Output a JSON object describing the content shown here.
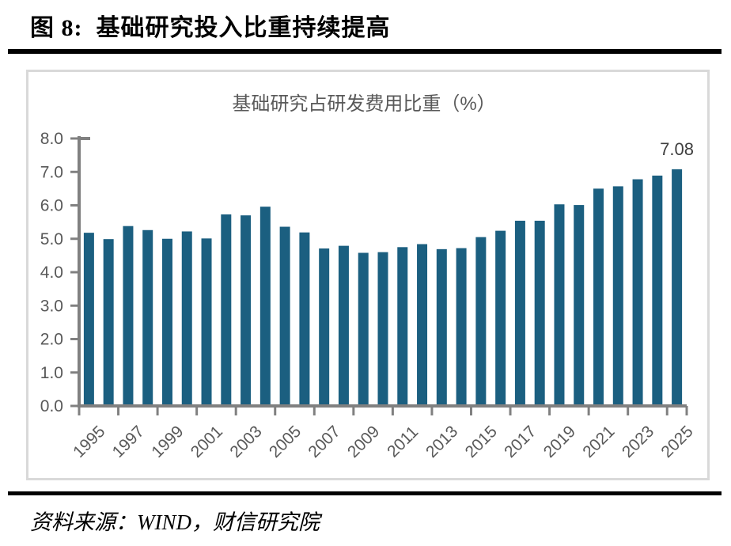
{
  "header": {
    "title": "图 8:  基础研究投入比重持续提高"
  },
  "footer": {
    "source": "资料来源：WIND，财信研究院"
  },
  "chart_data": {
    "type": "bar",
    "title": "基础研究占研发费用比重（%）",
    "categories": [
      1995,
      1996,
      1997,
      1998,
      1999,
      2000,
      2001,
      2002,
      2003,
      2004,
      2005,
      2006,
      2007,
      2008,
      2009,
      2010,
      2011,
      2012,
      2013,
      2014,
      2015,
      2016,
      2017,
      2018,
      2019,
      2020,
      2021,
      2022,
      2023,
      2024,
      2025
    ],
    "values": [
      5.18,
      4.99,
      5.38,
      5.26,
      5.0,
      5.22,
      5.01,
      5.73,
      5.7,
      5.96,
      5.36,
      5.19,
      4.71,
      4.79,
      4.58,
      4.6,
      4.75,
      4.84,
      4.69,
      4.72,
      5.05,
      5.24,
      5.54,
      5.54,
      6.03,
      6.01,
      6.5,
      6.57,
      6.78,
      6.89,
      7.08
    ],
    "xtick_labels_shown": [
      "1995",
      "1997",
      "1999",
      "2001",
      "2003",
      "2005",
      "2007",
      "2009",
      "2011",
      "2013",
      "2015",
      "2017",
      "2019",
      "2021",
      "2023",
      "2025"
    ],
    "ytick_labels": [
      "0.0",
      "1.0",
      "2.0",
      "3.0",
      "4.0",
      "5.0",
      "6.0",
      "7.0",
      "8.0"
    ],
    "ylim": [
      0,
      8
    ],
    "ytick_step": 1.0,
    "grid": false,
    "legend": null,
    "annotation": {
      "text": "7.08",
      "category": 2025
    },
    "colors": {
      "bar": "#1b5f80",
      "axis": "#808080",
      "tick_label": "#595959",
      "chart_title": "#595959",
      "annotation": "#3f3f3f",
      "frame_border": "#d9d9d9"
    }
  }
}
